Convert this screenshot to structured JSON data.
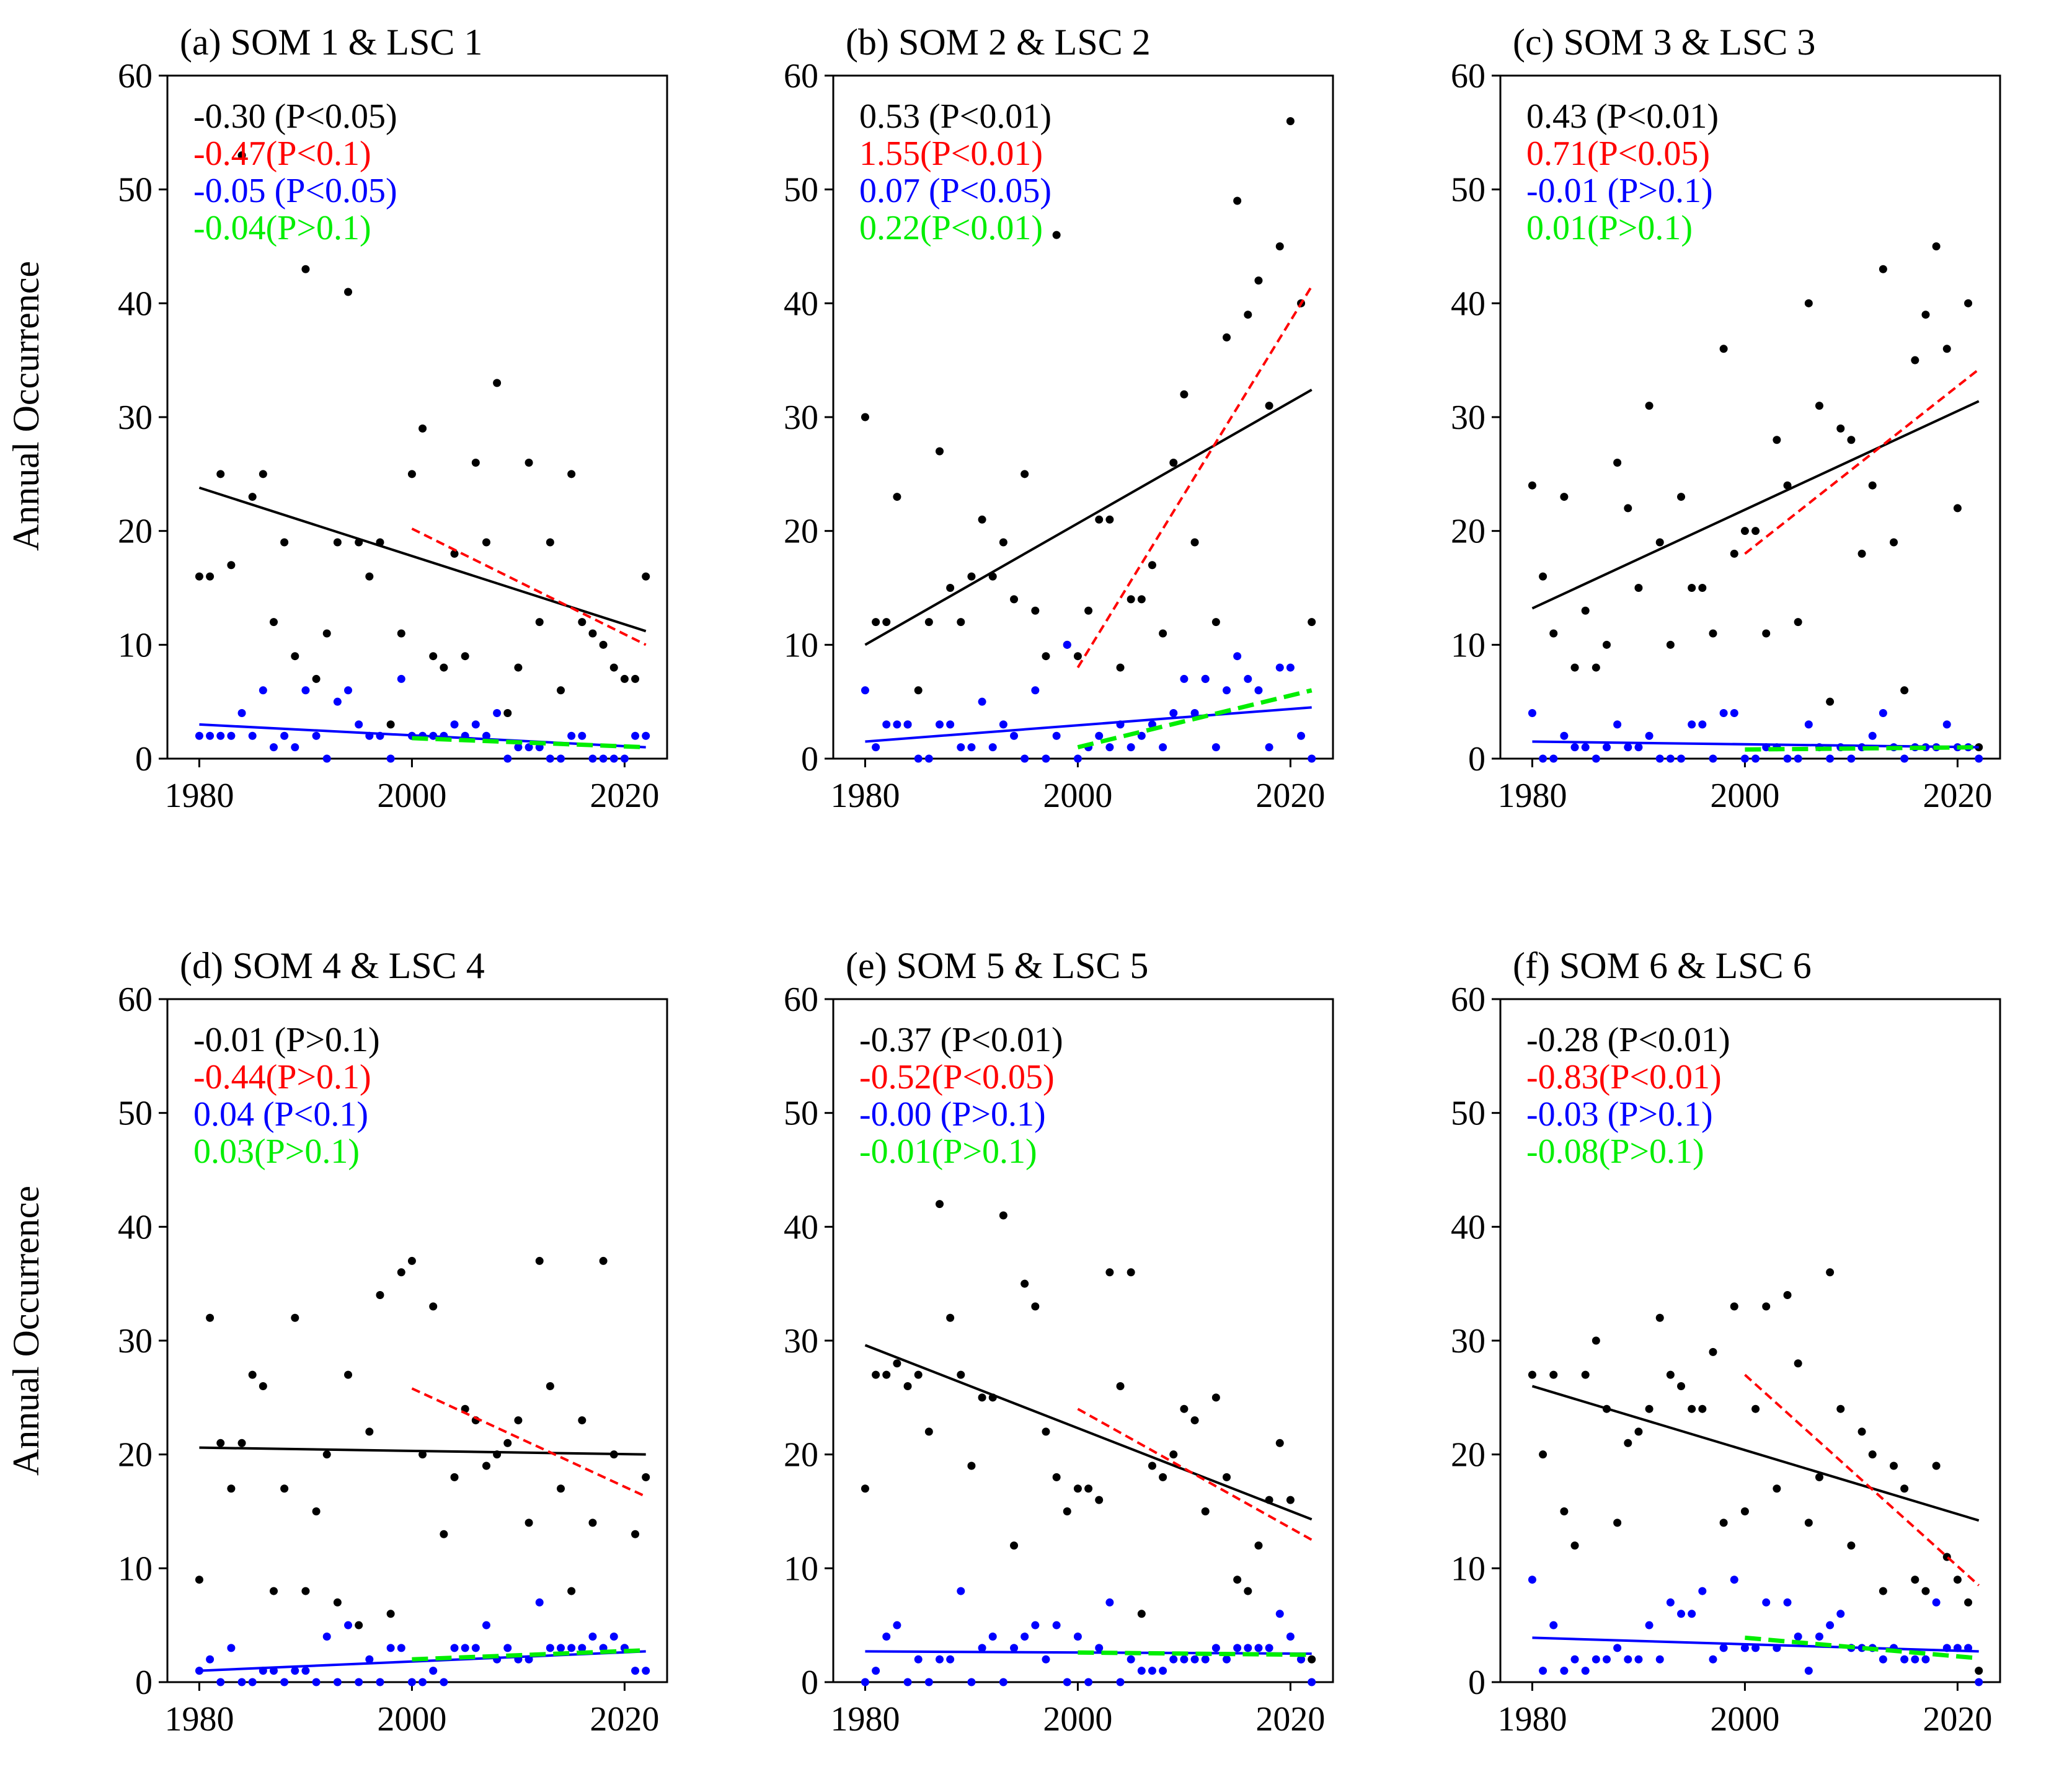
{
  "figure": {
    "ylabel": "Annual Occurrence",
    "xlim": [
      1977,
      2024
    ],
    "ylim": [
      0,
      60
    ],
    "xticks": [
      "1980",
      "2000",
      "2020"
    ],
    "yticks": [
      "0",
      "10",
      "20",
      "30",
      "40",
      "50",
      "60"
    ],
    "colors": {
      "series1": "#000000",
      "series2": "#ff0000",
      "series3": "#0000ff",
      "series4": "#00ee00"
    }
  },
  "chart_data": [
    {
      "type": "scatter",
      "title": "(a) SOM 1 & LSC 1",
      "stats": [
        "-0.30 (P<0.05)",
        "-0.47(P<0.1)",
        "-0.05 (P<0.05)",
        "-0.04(P>0.1)"
      ],
      "black_points": [
        16,
        16,
        25,
        17,
        53,
        23,
        25,
        12,
        19,
        9,
        43,
        7,
        11,
        19,
        41,
        19,
        16,
        19,
        3,
        11,
        25,
        29,
        9,
        8,
        18,
        9,
        26,
        19,
        33,
        4,
        8,
        26,
        12,
        19,
        6,
        25,
        12,
        11,
        10,
        8,
        7,
        7,
        16
      ],
      "blue_points": [
        2,
        2,
        2,
        2,
        4,
        2,
        6,
        1,
        2,
        1,
        6,
        2,
        0,
        5,
        6,
        3,
        2,
        2,
        0,
        7,
        2,
        2,
        2,
        2,
        3,
        2,
        3,
        2,
        4,
        0,
        1,
        1,
        1,
        0,
        0,
        2,
        2,
        0,
        0,
        0,
        0,
        2,
        2
      ],
      "trends": [
        {
          "color": "black",
          "style": "solid",
          "x": [
            1980,
            2022
          ],
          "y": [
            23.8,
            11.2
          ]
        },
        {
          "color": "red",
          "style": "dashed",
          "x": [
            2000,
            2022
          ],
          "y": [
            20.2,
            10.0
          ]
        },
        {
          "color": "blue",
          "style": "solid",
          "x": [
            1980,
            2022
          ],
          "y": [
            3.0,
            1.0
          ]
        },
        {
          "color": "green",
          "style": "dashed",
          "x": [
            2000,
            2022
          ],
          "y": [
            1.8,
            1.0
          ]
        }
      ]
    },
    {
      "type": "scatter",
      "title": "(b) SOM 2 & LSC 2",
      "stats": [
        "0.53 (P<0.01)",
        "1.55(P<0.01)",
        "0.07 (P<0.05)",
        "0.22(P<0.01)"
      ],
      "black_points": [
        30,
        12,
        12,
        23,
        3,
        6,
        12,
        27,
        15,
        12,
        16,
        21,
        16,
        19,
        14,
        25,
        13,
        9,
        46,
        10,
        9,
        13,
        21,
        21,
        8,
        14,
        14,
        17,
        11,
        26,
        32,
        19,
        7,
        12,
        37,
        49,
        39,
        42,
        31,
        45,
        56,
        40,
        12
      ],
      "blue_points": [
        6,
        1,
        3,
        3,
        3,
        0,
        0,
        3,
        3,
        1,
        1,
        5,
        1,
        3,
        2,
        0,
        6,
        0,
        2,
        10,
        0,
        1,
        2,
        1,
        3,
        1,
        2,
        3,
        1,
        4,
        7,
        4,
        7,
        1,
        6,
        9,
        7,
        6,
        1,
        8,
        8,
        2,
        0
      ],
      "trends": [
        {
          "color": "black",
          "style": "solid",
          "x": [
            1980,
            2022
          ],
          "y": [
            10.0,
            32.4
          ]
        },
        {
          "color": "red",
          "style": "dashed",
          "x": [
            2000,
            2022
          ],
          "y": [
            8.0,
            41.5
          ]
        },
        {
          "color": "blue",
          "style": "solid",
          "x": [
            1980,
            2022
          ],
          "y": [
            1.5,
            4.5
          ]
        },
        {
          "color": "green",
          "style": "dashed",
          "x": [
            2000,
            2022
          ],
          "y": [
            1.0,
            6.0
          ]
        }
      ]
    },
    {
      "type": "scatter",
      "title": "(c) SOM 3 & LSC 3",
      "stats": [
        "0.43 (P<0.01)",
        "0.71(P<0.05)",
        "-0.01 (P>0.1)",
        "0.01(P>0.1)"
      ],
      "black_points": [
        24,
        16,
        11,
        23,
        8,
        13,
        8,
        10,
        26,
        22,
        15,
        31,
        19,
        10,
        23,
        15,
        15,
        11,
        36,
        18,
        20,
        20,
        11,
        28,
        24,
        12,
        40,
        31,
        5,
        29,
        28,
        18,
        24,
        43,
        19,
        6,
        35,
        39,
        45,
        36,
        22,
        40,
        1
      ],
      "blue_points": [
        4,
        0,
        0,
        2,
        1,
        1,
        0,
        1,
        3,
        1,
        1,
        2,
        0,
        0,
        0,
        3,
        3,
        0,
        4,
        4,
        0,
        0,
        1,
        1,
        0,
        0,
        3,
        1,
        0,
        1,
        0,
        1,
        2,
        4,
        1,
        0,
        1,
        1,
        1,
        3,
        1,
        1,
        0
      ],
      "trends": [
        {
          "color": "black",
          "style": "solid",
          "x": [
            1980,
            2022
          ],
          "y": [
            13.2,
            31.4
          ]
        },
        {
          "color": "red",
          "style": "dashed",
          "x": [
            2000,
            2022
          ],
          "y": [
            18.0,
            34.2
          ]
        },
        {
          "color": "blue",
          "style": "solid",
          "x": [
            1980,
            2022
          ],
          "y": [
            1.5,
            1.0
          ]
        },
        {
          "color": "green",
          "style": "dashed",
          "x": [
            2000,
            2022
          ],
          "y": [
            0.8,
            1.0
          ]
        }
      ]
    },
    {
      "type": "scatter",
      "title": "(d) SOM 4 & LSC 4",
      "stats": [
        "-0.01 (P>0.1)",
        "-0.44(P>0.1)",
        "0.04 (P<0.1)",
        "0.03(P>0.1)"
      ],
      "black_points": [
        9,
        32,
        21,
        17,
        21,
        27,
        26,
        8,
        17,
        32,
        8,
        15,
        20,
        7,
        27,
        5,
        22,
        34,
        6,
        36,
        37,
        20,
        33,
        13,
        18,
        24,
        23,
        19,
        20,
        21,
        23,
        14,
        37,
        26,
        17,
        8,
        23,
        14,
        37,
        20,
        3,
        13,
        18
      ],
      "blue_points": [
        1,
        2,
        0,
        3,
        0,
        0,
        1,
        1,
        0,
        1,
        1,
        0,
        4,
        0,
        5,
        0,
        2,
        0,
        3,
        3,
        0,
        0,
        1,
        0,
        3,
        3,
        3,
        5,
        2,
        3,
        2,
        2,
        7,
        3,
        3,
        3,
        3,
        4,
        3,
        4,
        3,
        1,
        1
      ],
      "trends": [
        {
          "color": "black",
          "style": "solid",
          "x": [
            1980,
            2022
          ],
          "y": [
            20.6,
            20.0
          ]
        },
        {
          "color": "red",
          "style": "dashed",
          "x": [
            2000,
            2022
          ],
          "y": [
            25.8,
            16.3
          ]
        },
        {
          "color": "blue",
          "style": "solid",
          "x": [
            1980,
            2022
          ],
          "y": [
            1.0,
            2.7
          ]
        },
        {
          "color": "green",
          "style": "dashed",
          "x": [
            2000,
            2022
          ],
          "y": [
            2.0,
            2.8
          ]
        }
      ]
    },
    {
      "type": "scatter",
      "title": "(e) SOM 5 & LSC 5",
      "stats": [
        "-0.37 (P<0.01)",
        "-0.52(P<0.05)",
        "-0.00 (P>0.1)",
        "-0.01(P>0.1)"
      ],
      "black_points": [
        17,
        27,
        27,
        28,
        26,
        27,
        22,
        42,
        32,
        27,
        19,
        25,
        25,
        41,
        12,
        35,
        33,
        22,
        18,
        15,
        17,
        17,
        16,
        36,
        26,
        36,
        6,
        19,
        18,
        20,
        24,
        23,
        15,
        25,
        18,
        9,
        8,
        12,
        16,
        21,
        16,
        2,
        2
      ],
      "blue_points": [
        0,
        1,
        4,
        5,
        0,
        2,
        0,
        2,
        2,
        8,
        0,
        3,
        4,
        0,
        3,
        4,
        5,
        2,
        5,
        0,
        4,
        0,
        3,
        7,
        0,
        2,
        1,
        1,
        1,
        2,
        2,
        2,
        2,
        3,
        2,
        3,
        3,
        3,
        3,
        6,
        4,
        2,
        0
      ],
      "trends": [
        {
          "color": "black",
          "style": "solid",
          "x": [
            1980,
            2022
          ],
          "y": [
            29.6,
            14.3
          ]
        },
        {
          "color": "red",
          "style": "dashed",
          "x": [
            2000,
            2022
          ],
          "y": [
            24.0,
            12.5
          ]
        },
        {
          "color": "blue",
          "style": "solid",
          "x": [
            1980,
            2022
          ],
          "y": [
            2.7,
            2.5
          ]
        },
        {
          "color": "green",
          "style": "dashed",
          "x": [
            2000,
            2022
          ],
          "y": [
            2.6,
            2.4
          ]
        }
      ]
    },
    {
      "type": "scatter",
      "title": "(f) SOM 6 & LSC 6",
      "stats": [
        "-0.28 (P<0.01)",
        "-0.83(P<0.01)",
        "-0.03 (P>0.1)",
        "-0.08(P>0.1)"
      ],
      "black_points": [
        27,
        20,
        27,
        15,
        12,
        27,
        30,
        24,
        14,
        21,
        22,
        24,
        32,
        27,
        26,
        24,
        24,
        29,
        14,
        33,
        15,
        24,
        33,
        17,
        34,
        28,
        14,
        18,
        36,
        24,
        12,
        22,
        20,
        8,
        19,
        17,
        9,
        8,
        19,
        11,
        9,
        7,
        1
      ],
      "blue_points": [
        9,
        1,
        5,
        1,
        2,
        1,
        2,
        2,
        3,
        2,
        2,
        5,
        2,
        7,
        6,
        6,
        8,
        2,
        3,
        9,
        3,
        3,
        7,
        3,
        7,
        4,
        1,
        4,
        5,
        6,
        3,
        3,
        3,
        2,
        3,
        2,
        2,
        2,
        7,
        3,
        3,
        3,
        0
      ],
      "trends": [
        {
          "color": "black",
          "style": "solid",
          "x": [
            1980,
            2022
          ],
          "y": [
            26.0,
            14.2
          ]
        },
        {
          "color": "red",
          "style": "dashed",
          "x": [
            2000,
            2022
          ],
          "y": [
            27.0,
            8.5
          ]
        },
        {
          "color": "blue",
          "style": "solid",
          "x": [
            1980,
            2022
          ],
          "y": [
            3.9,
            2.7
          ]
        },
        {
          "color": "green",
          "style": "dashed",
          "x": [
            2000,
            2022
          ],
          "y": [
            3.9,
            2.1
          ]
        }
      ]
    }
  ]
}
